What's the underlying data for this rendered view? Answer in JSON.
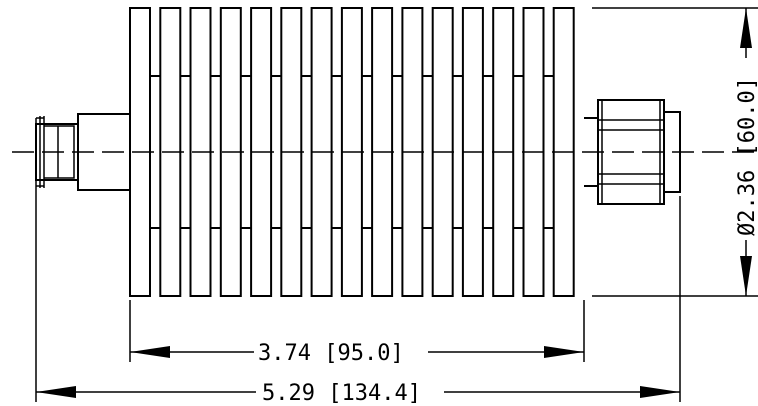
{
  "dimensions": {
    "body_length": "3.74 [95.0]",
    "overall_length": "5.29 [134.4]",
    "diameter": "Ø2.36 [60.0]"
  }
}
